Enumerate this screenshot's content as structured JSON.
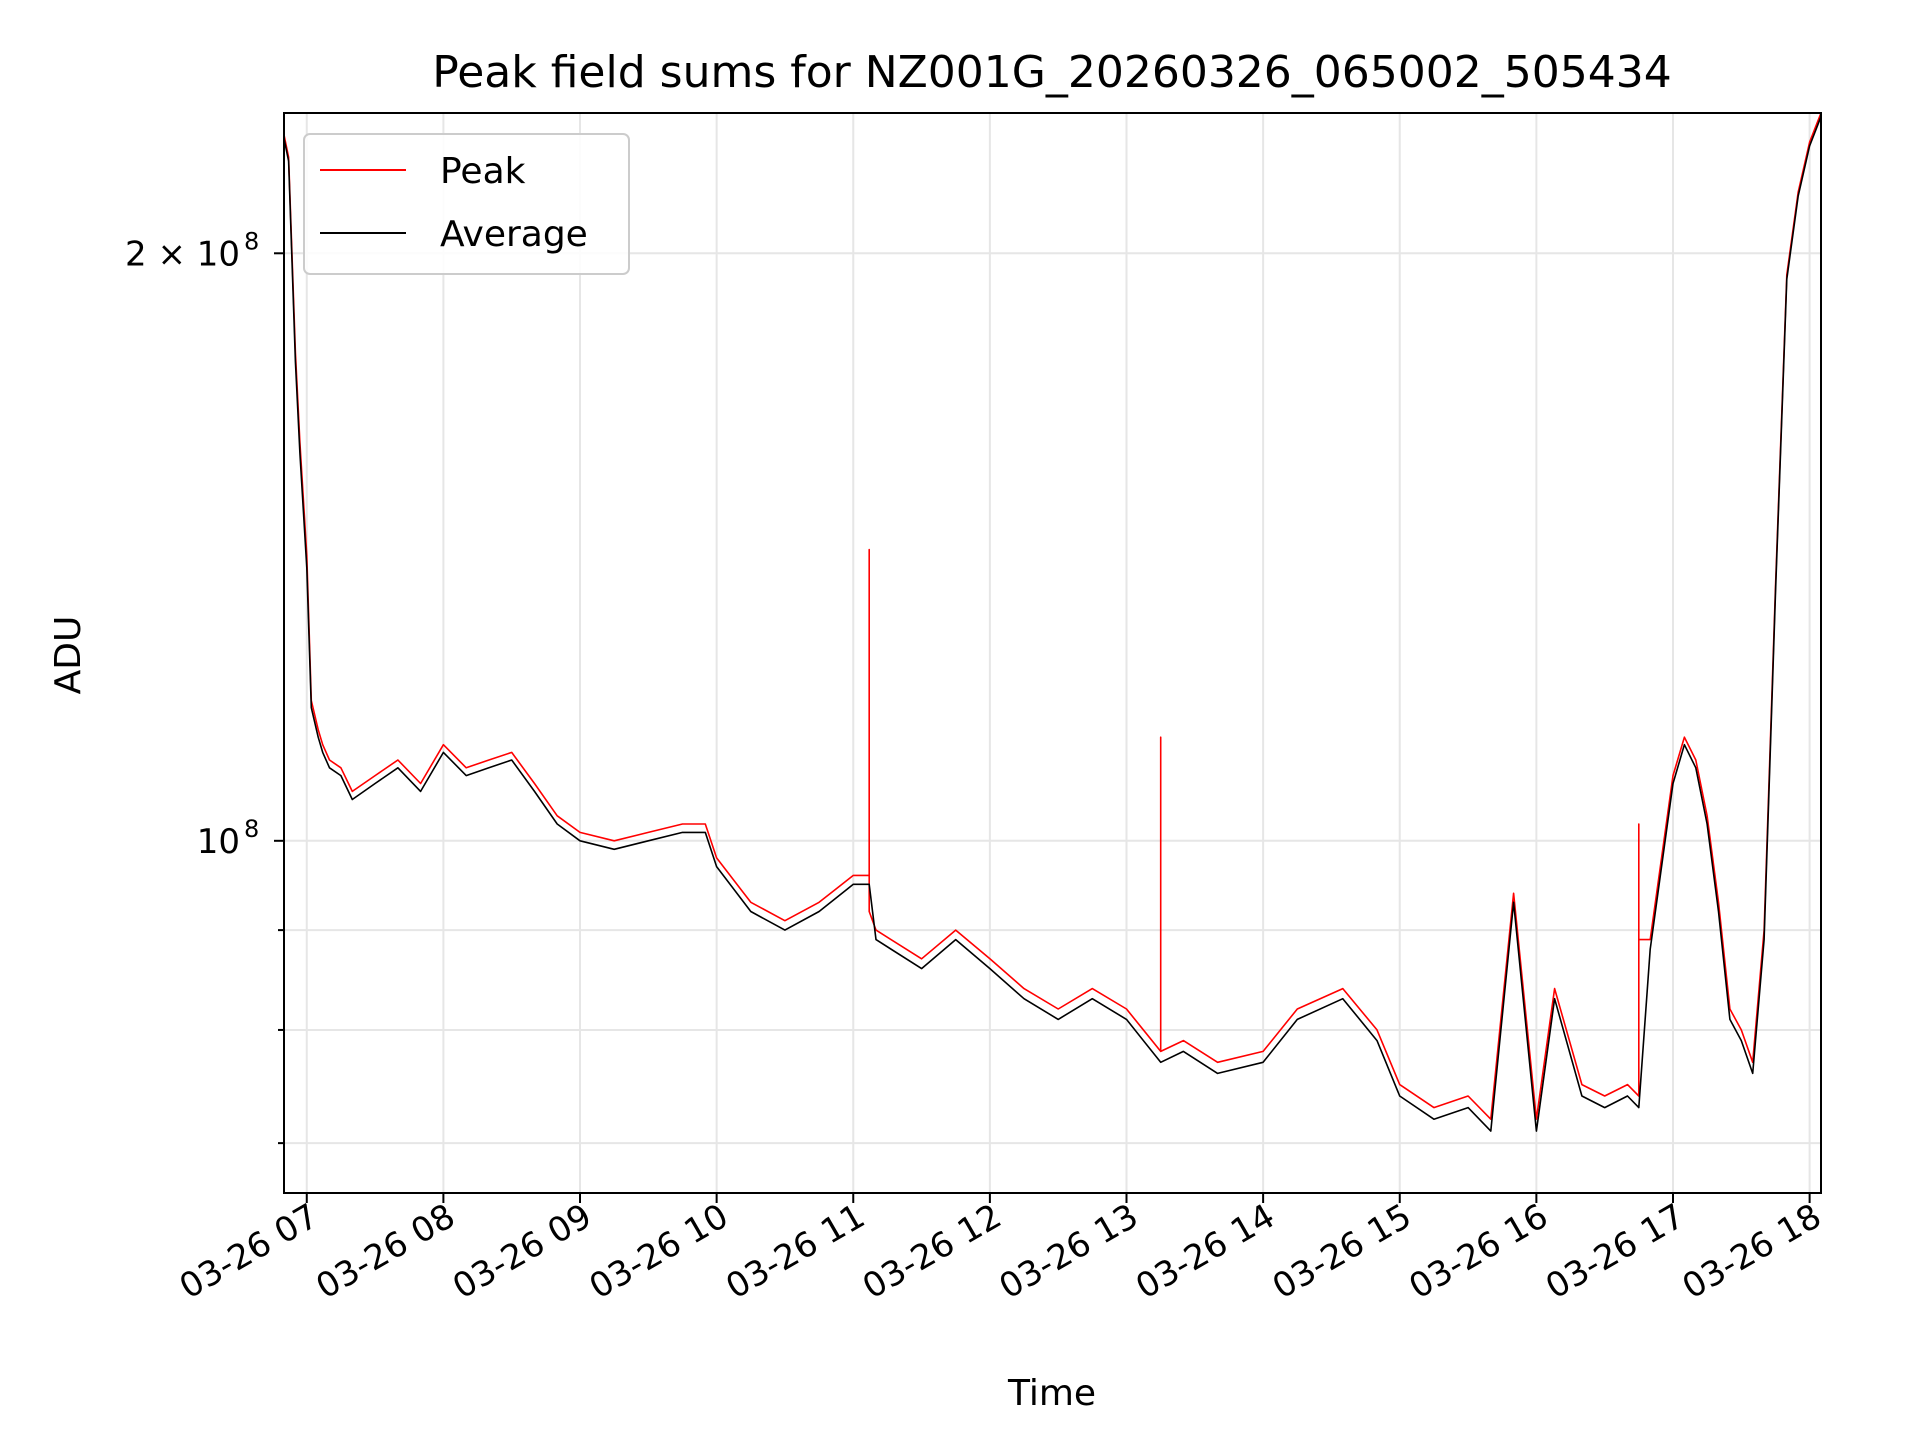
{
  "chart_data": {
    "type": "line",
    "title": "Peak field sums for NZ001G_20260326_065002_505434",
    "xlabel": "Time",
    "ylabel": "ADU",
    "x_scale": "time",
    "y_scale": "log",
    "xlim": [
      "2026-03-26 06:50",
      "2026-03-26 18:05"
    ],
    "ylim": [
      66000000,
      236000000
    ],
    "x_ticks": [
      {
        "t": "2026-03-26 07:00",
        "label": "03-26 07"
      },
      {
        "t": "2026-03-26 08:00",
        "label": "03-26 08"
      },
      {
        "t": "2026-03-26 09:00",
        "label": "03-26 09"
      },
      {
        "t": "2026-03-26 10:00",
        "label": "03-26 10"
      },
      {
        "t": "2026-03-26 11:00",
        "label": "03-26 11"
      },
      {
        "t": "2026-03-26 12:00",
        "label": "03-26 12"
      },
      {
        "t": "2026-03-26 13:00",
        "label": "03-26 13"
      },
      {
        "t": "2026-03-26 14:00",
        "label": "03-26 14"
      },
      {
        "t": "2026-03-26 15:00",
        "label": "03-26 15"
      },
      {
        "t": "2026-03-26 16:00",
        "label": "03-26 16"
      },
      {
        "t": "2026-03-26 17:00",
        "label": "03-26 17"
      },
      {
        "t": "2026-03-26 18:00",
        "label": "03-26 18"
      }
    ],
    "y_major_ticks": [
      {
        "value": 100000000,
        "base": "10",
        "exp": "8"
      },
      {
        "value": 200000000,
        "base": "2 × 10",
        "exp": "8"
      }
    ],
    "y_minor_ticks": [
      70000000,
      80000000,
      90000000
    ],
    "grid": true,
    "legend_position": "top-left",
    "series": [
      {
        "name": "Peak",
        "color": "#ff0000",
        "x": [
          "2026-03-26 06:50",
          "2026-03-26 06:52",
          "2026-03-26 06:55",
          "2026-03-26 06:57",
          "2026-03-26 07:00",
          "2026-03-26 07:02",
          "2026-03-26 07:05",
          "2026-03-26 07:07",
          "2026-03-26 07:10",
          "2026-03-26 07:15",
          "2026-03-26 07:20",
          "2026-03-26 07:30",
          "2026-03-26 07:40",
          "2026-03-26 07:50",
          "2026-03-26 08:00",
          "2026-03-26 08:10",
          "2026-03-26 08:20",
          "2026-03-26 08:30",
          "2026-03-26 08:40",
          "2026-03-26 08:50",
          "2026-03-26 09:00",
          "2026-03-26 09:15",
          "2026-03-26 09:30",
          "2026-03-26 09:45",
          "2026-03-26 09:55",
          "2026-03-26 10:00",
          "2026-03-26 10:15",
          "2026-03-26 10:30",
          "2026-03-26 10:45",
          "2026-03-26 11:00",
          "2026-03-26 11:07",
          "2026-03-26 11:07",
          "2026-03-26 11:07",
          "2026-03-26 11:10",
          "2026-03-26 11:30",
          "2026-03-26 11:45",
          "2026-03-26 12:00",
          "2026-03-26 12:15",
          "2026-03-26 12:30",
          "2026-03-26 12:45",
          "2026-03-26 13:00",
          "2026-03-26 13:15",
          "2026-03-26 13:15",
          "2026-03-26 13:15",
          "2026-03-26 13:25",
          "2026-03-26 13:40",
          "2026-03-26 14:00",
          "2026-03-26 14:15",
          "2026-03-26 14:35",
          "2026-03-26 14:50",
          "2026-03-26 15:00",
          "2026-03-26 15:15",
          "2026-03-26 15:30",
          "2026-03-26 15:40",
          "2026-03-26 15:50",
          "2026-03-26 16:00",
          "2026-03-26 16:08",
          "2026-03-26 16:20",
          "2026-03-26 16:30",
          "2026-03-26 16:40",
          "2026-03-26 16:45",
          "2026-03-26 16:45",
          "2026-03-26 16:45",
          "2026-03-26 16:50",
          "2026-03-26 17:00",
          "2026-03-26 17:05",
          "2026-03-26 17:10",
          "2026-03-26 17:15",
          "2026-03-26 17:20",
          "2026-03-26 17:25",
          "2026-03-26 17:30",
          "2026-03-26 17:35",
          "2026-03-26 17:40",
          "2026-03-26 17:45",
          "2026-03-26 17:50",
          "2026-03-26 17:55",
          "2026-03-26 18:00",
          "2026-03-26 18:05"
        ],
        "y": [
          230000000,
          224000000,
          178000000,
          160000000,
          140000000,
          118000000,
          114000000,
          112000000,
          110000000,
          109000000,
          106000000,
          108000000,
          110000000,
          107000000,
          112000000,
          109000000,
          110000000,
          111000000,
          107000000,
          103000000,
          101000000,
          100000000,
          101000000,
          102000000,
          102000000,
          98000000,
          93000000,
          91000000,
          93000000,
          96000000,
          96000000,
          141000000,
          92000000,
          90000000,
          87000000,
          90000000,
          87000000,
          84000000,
          82000000,
          84000000,
          82000000,
          78000000,
          113000000,
          78000000,
          79000000,
          77000000,
          78000000,
          82000000,
          84000000,
          80000000,
          75000000,
          73000000,
          74000000,
          72000000,
          94000000,
          72000000,
          84000000,
          75000000,
          74000000,
          75000000,
          74000000,
          102000000,
          89000000,
          89000000,
          108000000,
          113000000,
          110000000,
          103000000,
          93000000,
          82000000,
          80000000,
          77000000,
          90000000,
          135000000,
          195000000,
          215000000,
          228000000,
          236000000
        ]
      },
      {
        "name": "Average",
        "color": "#000000",
        "x": [
          "2026-03-26 06:50",
          "2026-03-26 06:52",
          "2026-03-26 06:55",
          "2026-03-26 06:57",
          "2026-03-26 07:00",
          "2026-03-26 07:02",
          "2026-03-26 07:05",
          "2026-03-26 07:07",
          "2026-03-26 07:10",
          "2026-03-26 07:15",
          "2026-03-26 07:20",
          "2026-03-26 07:30",
          "2026-03-26 07:40",
          "2026-03-26 07:50",
          "2026-03-26 08:00",
          "2026-03-26 08:10",
          "2026-03-26 08:20",
          "2026-03-26 08:30",
          "2026-03-26 08:40",
          "2026-03-26 08:50",
          "2026-03-26 09:00",
          "2026-03-26 09:15",
          "2026-03-26 09:30",
          "2026-03-26 09:45",
          "2026-03-26 09:55",
          "2026-03-26 10:00",
          "2026-03-26 10:15",
          "2026-03-26 10:30",
          "2026-03-26 10:45",
          "2026-03-26 11:00",
          "2026-03-26 11:07",
          "2026-03-26 11:10",
          "2026-03-26 11:30",
          "2026-03-26 11:45",
          "2026-03-26 12:00",
          "2026-03-26 12:15",
          "2026-03-26 12:30",
          "2026-03-26 12:45",
          "2026-03-26 13:00",
          "2026-03-26 13:15",
          "2026-03-26 13:25",
          "2026-03-26 13:40",
          "2026-03-26 14:00",
          "2026-03-26 14:15",
          "2026-03-26 14:35",
          "2026-03-26 14:50",
          "2026-03-26 15:00",
          "2026-03-26 15:15",
          "2026-03-26 15:30",
          "2026-03-26 15:40",
          "2026-03-26 15:50",
          "2026-03-26 16:00",
          "2026-03-26 16:08",
          "2026-03-26 16:20",
          "2026-03-26 16:30",
          "2026-03-26 16:40",
          "2026-03-26 16:45",
          "2026-03-26 16:50",
          "2026-03-26 17:00",
          "2026-03-26 17:05",
          "2026-03-26 17:10",
          "2026-03-26 17:15",
          "2026-03-26 17:20",
          "2026-03-26 17:25",
          "2026-03-26 17:30",
          "2026-03-26 17:35",
          "2026-03-26 17:40",
          "2026-03-26 17:45",
          "2026-03-26 17:50",
          "2026-03-26 17:55",
          "2026-03-26 18:00",
          "2026-03-26 18:05"
        ],
        "y": [
          229000000,
          223000000,
          176000000,
          158000000,
          138000000,
          117000000,
          113000000,
          111000000,
          109000000,
          108000000,
          105000000,
          107000000,
          109000000,
          106000000,
          111000000,
          108000000,
          109000000,
          110000000,
          106000000,
          102000000,
          100000000,
          99000000,
          100000000,
          101000000,
          101000000,
          97000000,
          92000000,
          90000000,
          92000000,
          95000000,
          95000000,
          89000000,
          86000000,
          89000000,
          86000000,
          83000000,
          81000000,
          83000000,
          81000000,
          77000000,
          78000000,
          76000000,
          77000000,
          81000000,
          83000000,
          79000000,
          74000000,
          72000000,
          73000000,
          71000000,
          93000000,
          71000000,
          83000000,
          74000000,
          73000000,
          74000000,
          73000000,
          88000000,
          107000000,
          112000000,
          109000000,
          102000000,
          92000000,
          81000000,
          79000000,
          76000000,
          89000000,
          134000000,
          194000000,
          214000000,
          227000000,
          235000000
        ]
      }
    ]
  }
}
